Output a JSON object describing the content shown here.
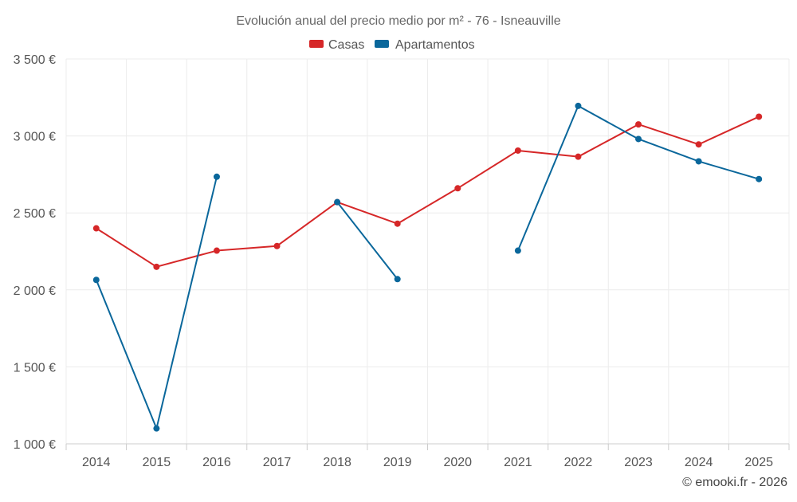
{
  "chart_data": {
    "type": "line",
    "title": "Evolución anual del precio medio por m² - 76 - Isneauville",
    "x": [
      "2014",
      "2015",
      "2016",
      "2017",
      "2018",
      "2019",
      "2020",
      "2021",
      "2022",
      "2023",
      "2024",
      "2025"
    ],
    "ylim": [
      1000,
      3500
    ],
    "yticks": [
      1000,
      1500,
      2000,
      2500,
      3000,
      3500
    ],
    "ytick_labels": [
      "1 000 €",
      "1 500 €",
      "2 000 €",
      "2 500 €",
      "3 000 €",
      "3 500 €"
    ],
    "grid": true,
    "legend_position": "top-center",
    "series": [
      {
        "name": "Casas",
        "color": "#d62728",
        "values": [
          2400,
          2150,
          2255,
          2285,
          2570,
          2430,
          2660,
          2905,
          2865,
          3075,
          2945,
          3125
        ]
      },
      {
        "name": "Apartamentos",
        "color": "#0a679b",
        "values": [
          2065,
          1100,
          2735,
          null,
          2570,
          2070,
          null,
          2255,
          3195,
          2980,
          2835,
          2720
        ]
      }
    ]
  },
  "credit": "© emooki.fr - 2026"
}
